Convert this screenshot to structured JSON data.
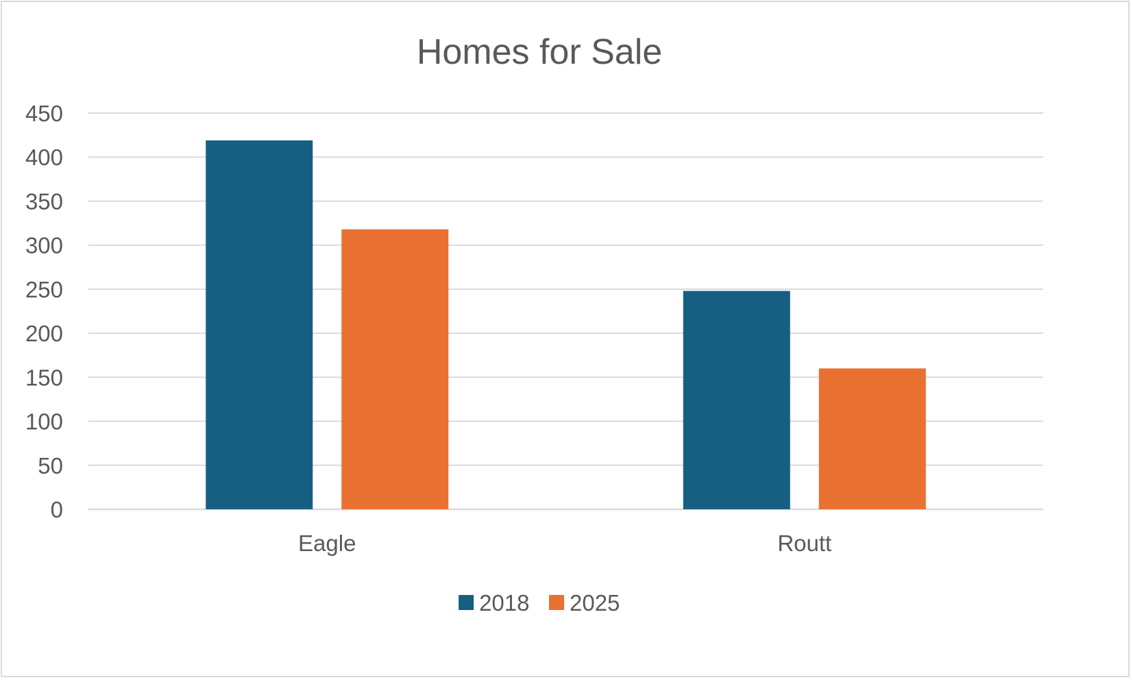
{
  "chart_data": {
    "type": "bar",
    "title": "Homes for Sale",
    "xlabel": "",
    "ylabel": "",
    "categories": [
      "Eagle",
      "Routt"
    ],
    "series": [
      {
        "name": "2018",
        "values": [
          419,
          248
        ],
        "color": "#175f82"
      },
      {
        "name": "2025",
        "values": [
          318,
          160
        ],
        "color": "#e97132"
      }
    ],
    "ylim": [
      0,
      450
    ],
    "yticks": [
      "0",
      "50",
      "100",
      "150",
      "200",
      "250",
      "300",
      "350",
      "400",
      "450"
    ],
    "grid": true,
    "legend": "bottom"
  }
}
